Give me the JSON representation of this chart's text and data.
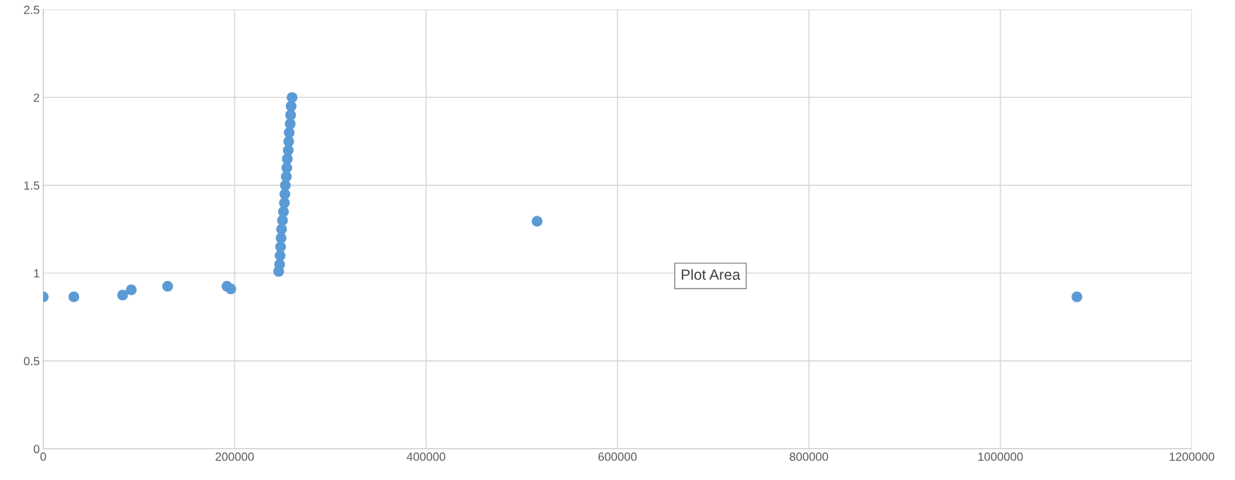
{
  "chart_data": {
    "type": "scatter",
    "color": "#5b9bd5",
    "marker": "circle",
    "grid": true,
    "legend": false,
    "x": [
      0,
      32000,
      83000,
      92000,
      130000,
      192000,
      196000,
      246000,
      247000,
      247500,
      248000,
      248500,
      249000,
      250000,
      251000,
      252000,
      252500,
      253000,
      254000,
      254500,
      255000,
      256000,
      256500,
      257000,
      258000,
      258500,
      259000,
      260000,
      516000,
      1080000
    ],
    "values": [
      0.865,
      0.865,
      0.875,
      0.905,
      0.925,
      0.925,
      0.91,
      1.01,
      1.05,
      1.1,
      1.15,
      1.2,
      1.25,
      1.3,
      1.35,
      1.4,
      1.45,
      1.5,
      1.55,
      1.6,
      1.65,
      1.7,
      1.75,
      1.8,
      1.85,
      1.9,
      1.95,
      2.0,
      1.295,
      0.865
    ],
    "xlim": [
      0,
      1200000
    ],
    "xticks": [
      0,
      200000,
      400000,
      600000,
      800000,
      1000000,
      1200000
    ],
    "ylim": [
      0,
      2.5
    ],
    "yticks": [
      0,
      0.5,
      1,
      1.5,
      2,
      2.5
    ],
    "annotations": [
      "Plot Area"
    ]
  }
}
